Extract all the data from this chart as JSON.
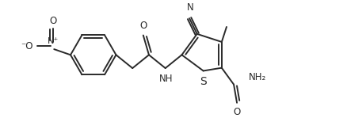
{
  "bg_color": "#ffffff",
  "line_color": "#2a2a2a",
  "line_width": 1.4,
  "font_size": 8.5,
  "fig_width": 4.39,
  "fig_height": 1.49,
  "dpi": 100,
  "xlim": [
    0,
    10
  ],
  "ylim": [
    0,
    3.4
  ]
}
